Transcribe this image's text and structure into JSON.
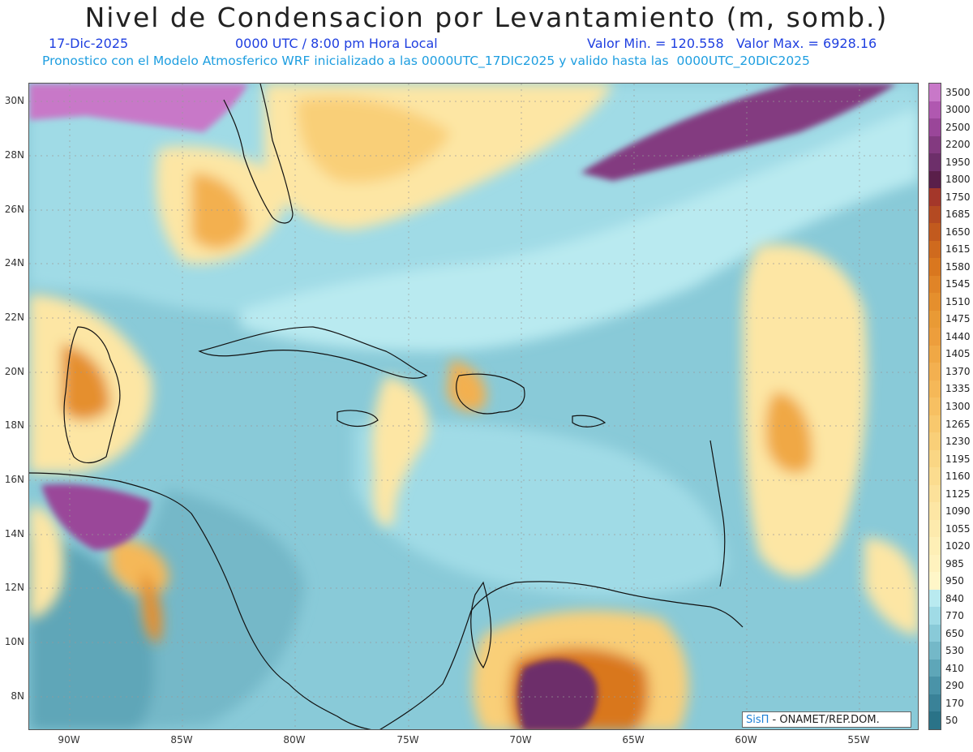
{
  "header": {
    "title": "Nivel de Condensacion por Levantamiento (m, somb.)",
    "date": "17-Dic-2025",
    "time": "0000 UTC / 8:00 pm Hora Local",
    "minmax": "Valor Min. = 120.558   Valor Max. = 6928.16",
    "forecast": "Pronostico con el Modelo Atmosferico WRF inicializado a las 0000UTC_17DIC2025 y valido hasta las  0000UTC_20DIC2025"
  },
  "colors": {
    "title": "#222222",
    "date": "#1f3fe0",
    "forecast": "#1e9ee0"
  },
  "axes": {
    "lat_labels": [
      "30N",
      "28N",
      "26N",
      "24N",
      "22N",
      "20N",
      "18N",
      "16N",
      "14N",
      "12N",
      "10N",
      "8N"
    ],
    "lon_labels": [
      "90W",
      "85W",
      "80W",
      "75W",
      "70W",
      "65W",
      "60W",
      "55W"
    ]
  },
  "legend": {
    "levels": [
      "3500",
      "3000",
      "2500",
      "2200",
      "1950",
      "1800",
      "1750",
      "1685",
      "1650",
      "1615",
      "1580",
      "1545",
      "1510",
      "1475",
      "1440",
      "1405",
      "1370",
      "1335",
      "1300",
      "1265",
      "1230",
      "1195",
      "1160",
      "1125",
      "1090",
      "1055",
      "1020",
      "985",
      "950",
      "840",
      "770",
      "650",
      "530",
      "410",
      "290",
      "170",
      "50"
    ],
    "colors": [
      "#c878c8",
      "#b058b0",
      "#9a4699",
      "#833a80",
      "#6d2f6a",
      "#5a1f4a",
      "#a4372a",
      "#b44a22",
      "#c25a1e",
      "#cf6a1e",
      "#d9771f",
      "#e08427",
      "#e58f2d",
      "#e99a35",
      "#ed9e3c",
      "#f0a845",
      "#f3b050",
      "#f5b858",
      "#f7c062",
      "#f8c86d",
      "#f9cf78",
      "#fad684",
      "#fbdc8f",
      "#fce19a",
      "#fde6a4",
      "#fdeaad",
      "#feefb6",
      "#fff2be",
      "#fff6c8",
      "#b9eaf0",
      "#a0dbe6",
      "#89cad8",
      "#74b8c8",
      "#5ea6b8",
      "#4a93a8",
      "#3a8298",
      "#2a7388"
    ]
  },
  "credit": {
    "brand": "SisΠ",
    "text": " - ONAMET/REP.DOM."
  }
}
